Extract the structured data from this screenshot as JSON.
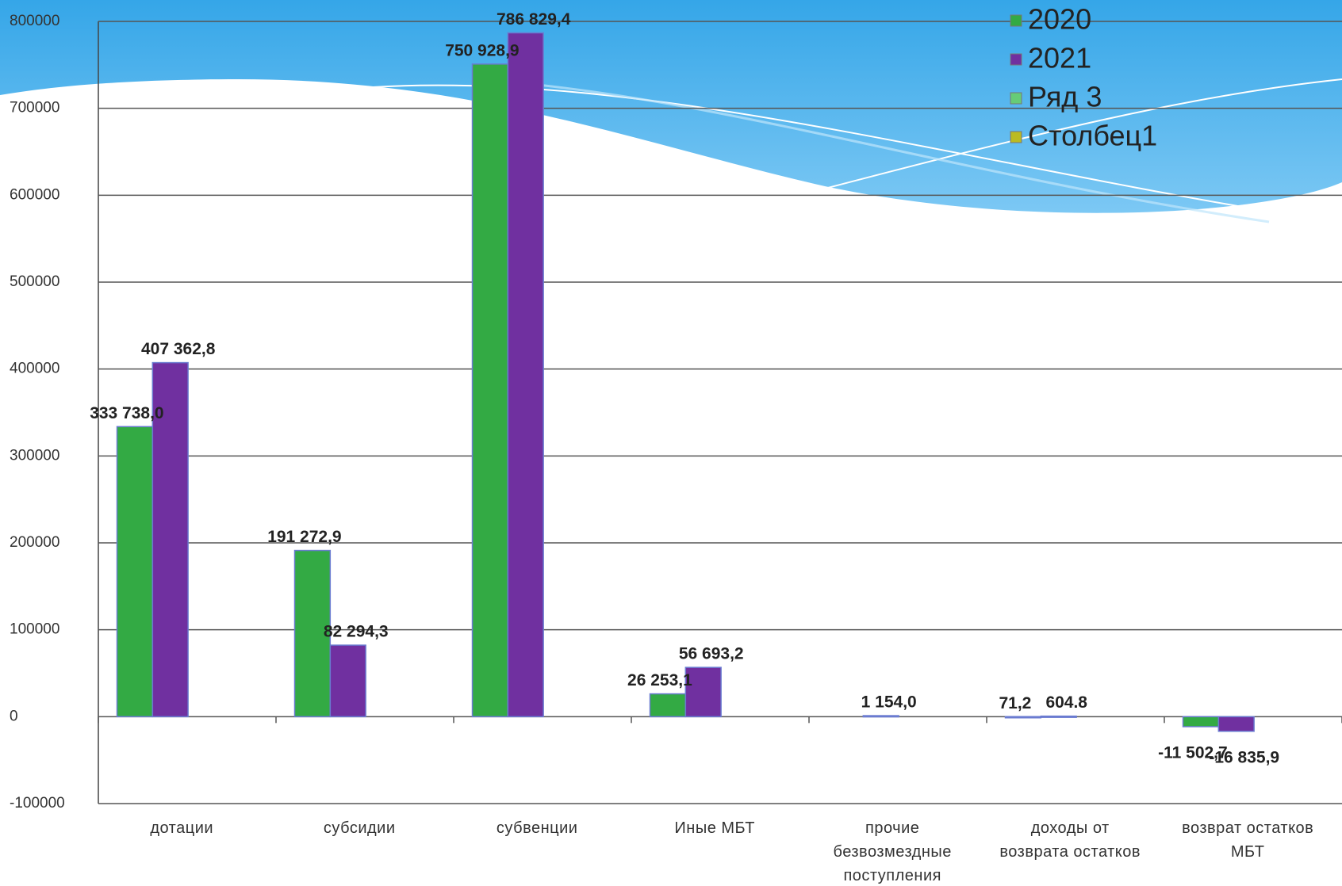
{
  "chart_data": {
    "type": "bar",
    "categories": [
      "дотации",
      "субсидии",
      "субвенции",
      "Иные МБТ",
      "прочие безвозмездные поступления",
      "доходы от возврата остатков",
      "возврат остатков МБТ"
    ],
    "series": [
      {
        "name": "2020",
        "color": "#33aa44",
        "values": [
          333738.0,
          191272.9,
          750928.9,
          26253.1,
          null,
          71.2,
          -11502.7
        ],
        "value_labels": [
          "333 738,0",
          "191 272,9",
          "750 928,9",
          "26 253,1",
          null,
          "71,2",
          "-11 502,7"
        ]
      },
      {
        "name": "2021",
        "color": "#7030a0",
        "values": [
          407362.8,
          82294.3,
          786829.4,
          56693.2,
          1154.0,
          604.8,
          -16835.9
        ],
        "value_labels": [
          "407 362,8",
          "82 294,3",
          "786 829,4",
          "56 693,2",
          "1 154,0",
          "604.8",
          "-16 835,9"
        ]
      },
      {
        "name": "Ряд 3",
        "color": "#66cc77",
        "values": [
          null,
          null,
          null,
          null,
          null,
          null,
          null
        ]
      },
      {
        "name": "Столбец1",
        "color": "#bbbb22",
        "values": [
          null,
          null,
          null,
          null,
          null,
          null,
          null
        ]
      }
    ],
    "ylim": [
      -100000,
      800000
    ],
    "yticks": [
      -100000,
      0,
      100000,
      200000,
      300000,
      400000,
      500000,
      600000,
      700000,
      800000
    ],
    "grid": true
  }
}
